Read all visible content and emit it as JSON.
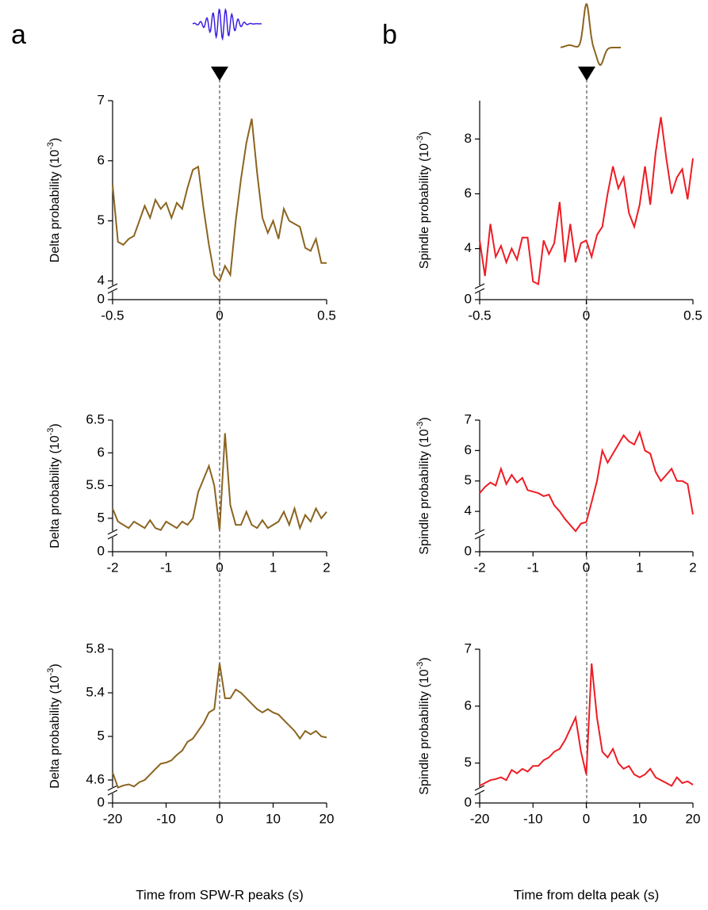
{
  "panel_labels": [
    "a",
    "b"
  ],
  "chart_data": [
    {
      "type": "line",
      "y_label": {
        "text": "Delta probability (10",
        "sup": "-3",
        "tail": ")"
      },
      "color": "#8b6420",
      "x": [
        -0.5,
        -0.475,
        -0.45,
        -0.425,
        -0.4,
        -0.375,
        -0.35,
        -0.325,
        -0.3,
        -0.275,
        -0.25,
        -0.225,
        -0.2,
        -0.175,
        -0.15,
        -0.125,
        -0.1,
        -0.075,
        -0.05,
        -0.025,
        0,
        0.025,
        0.05,
        0.075,
        0.1,
        0.125,
        0.15,
        0.175,
        0.2,
        0.225,
        0.25,
        0.275,
        0.3,
        0.325,
        0.35,
        0.375,
        0.4,
        0.425,
        0.45,
        0.475,
        0.5
      ],
      "values": [
        5.6,
        4.65,
        4.6,
        4.7,
        4.75,
        5.0,
        5.25,
        5.05,
        5.35,
        5.2,
        5.3,
        5.05,
        5.3,
        5.2,
        5.55,
        5.85,
        5.9,
        5.2,
        4.6,
        4.1,
        4.0,
        4.25,
        4.1,
        5.0,
        5.7,
        6.3,
        6.7,
        5.8,
        5.05,
        4.8,
        5.0,
        4.7,
        5.2,
        5.0,
        4.95,
        4.9,
        4.55,
        4.5,
        4.7,
        4.3,
        4.3
      ],
      "xlim": [
        -0.5,
        0.5
      ],
      "xticks": [
        -0.5,
        0,
        0.5
      ],
      "ylim": [
        3.9,
        7
      ],
      "yticks": [
        4,
        5,
        6,
        7
      ],
      "ybreak_tick": 0
    },
    {
      "type": "line",
      "y_label": {
        "text": "Delta probability (10",
        "sup": "-3",
        "tail": ")"
      },
      "color": "#8b6420",
      "x": [
        -2,
        -1.9,
        -1.8,
        -1.7,
        -1.6,
        -1.5,
        -1.4,
        -1.3,
        -1.2,
        -1.1,
        -1,
        -0.9,
        -0.8,
        -0.7,
        -0.6,
        -0.5,
        -0.4,
        -0.3,
        -0.2,
        -0.1,
        0,
        0.1,
        0.2,
        0.3,
        0.4,
        0.5,
        0.6,
        0.7,
        0.8,
        0.9,
        1,
        1.1,
        1.2,
        1.3,
        1.4,
        1.5,
        1.6,
        1.7,
        1.8,
        1.9,
        2
      ],
      "values": [
        5.15,
        4.95,
        4.9,
        4.85,
        4.95,
        4.9,
        4.85,
        4.97,
        4.85,
        4.82,
        4.95,
        4.9,
        4.85,
        4.95,
        4.9,
        5.0,
        5.4,
        5.6,
        5.8,
        5.5,
        4.82,
        6.3,
        5.2,
        4.9,
        4.9,
        5.1,
        4.9,
        4.85,
        4.97,
        4.85,
        4.9,
        4.95,
        5.1,
        4.9,
        5.15,
        4.85,
        5.05,
        4.95,
        5.15,
        5.0,
        5.1
      ],
      "xlim": [
        -2,
        2
      ],
      "xticks": [
        -2,
        -1,
        0,
        1,
        2
      ],
      "ylim": [
        4.78,
        6.5
      ],
      "yticks": [
        5,
        5.5,
        6,
        6.5
      ],
      "ybreak_tick": 0
    },
    {
      "type": "line",
      "y_label": {
        "text": "Delta probability (10",
        "sup": "-3",
        "tail": ")"
      },
      "color": "#8b6420",
      "x_label": "Time from SPW-R peaks (s)",
      "x": [
        -20,
        -19,
        -18,
        -17,
        -16,
        -15,
        -14,
        -13,
        -12,
        -11,
        -10,
        -9,
        -8,
        -7,
        -6,
        -5,
        -4,
        -3,
        -2,
        -1,
        0,
        1,
        2,
        3,
        4,
        5,
        6,
        7,
        8,
        9,
        10,
        11,
        12,
        13,
        14,
        15,
        16,
        17,
        18,
        19,
        20
      ],
      "values": [
        4.67,
        4.53,
        4.55,
        4.56,
        4.54,
        4.58,
        4.6,
        4.65,
        4.7,
        4.75,
        4.76,
        4.78,
        4.83,
        4.87,
        4.95,
        4.98,
        5.05,
        5.12,
        5.22,
        5.25,
        5.67,
        5.35,
        5.35,
        5.43,
        5.4,
        5.35,
        5.3,
        5.25,
        5.22,
        5.25,
        5.22,
        5.2,
        5.15,
        5.1,
        5.05,
        4.98,
        5.05,
        5.02,
        5.05,
        5.0,
        4.99
      ],
      "xlim": [
        -20,
        20
      ],
      "xticks": [
        -20,
        -10,
        0,
        10,
        20
      ],
      "ylim": [
        4.52,
        5.8
      ],
      "yticks": [
        4.6,
        5,
        5.4,
        5.8
      ],
      "ybreak_tick": 0
    },
    {
      "type": "line",
      "y_label": {
        "text": "Spindle probability (10",
        "sup": "-3",
        "tail": ")"
      },
      "color": "#ee1c24",
      "x": [
        -0.5,
        -0.475,
        -0.45,
        -0.425,
        -0.4,
        -0.375,
        -0.35,
        -0.325,
        -0.3,
        -0.275,
        -0.25,
        -0.225,
        -0.2,
        -0.175,
        -0.15,
        -0.125,
        -0.1,
        -0.075,
        -0.05,
        -0.025,
        0,
        0.025,
        0.05,
        0.075,
        0.1,
        0.125,
        0.15,
        0.175,
        0.2,
        0.225,
        0.25,
        0.275,
        0.3,
        0.325,
        0.35,
        0.375,
        0.4,
        0.425,
        0.45,
        0.475,
        0.5
      ],
      "values": [
        4.3,
        3.0,
        4.9,
        3.7,
        4.1,
        3.5,
        4.0,
        3.6,
        4.4,
        4.4,
        2.8,
        2.7,
        4.3,
        3.8,
        4.2,
        5.7,
        3.5,
        4.9,
        3.5,
        4.2,
        4.3,
        3.7,
        4.5,
        4.8,
        6.0,
        7.0,
        6.2,
        6.6,
        5.3,
        4.8,
        5.6,
        7.0,
        5.6,
        7.5,
        8.8,
        7.3,
        6.0,
        6.6,
        6.9,
        5.8,
        7.3
      ],
      "xlim": [
        -0.5,
        0.5
      ],
      "xticks": [
        -0.5,
        0,
        0.5
      ],
      "ylim": [
        2.6,
        9.4
      ],
      "yticks": [
        4,
        6,
        8
      ],
      "ybreak_tick": 0
    },
    {
      "type": "line",
      "y_label": {
        "text": "Spindle probability (10",
        "sup": "-3",
        "tail": ")"
      },
      "color": "#ee1c24",
      "x": [
        -2,
        -1.9,
        -1.8,
        -1.7,
        -1.6,
        -1.5,
        -1.4,
        -1.3,
        -1.2,
        -1.1,
        -1,
        -0.9,
        -0.8,
        -0.7,
        -0.6,
        -0.5,
        -0.4,
        -0.3,
        -0.2,
        -0.1,
        0,
        0.1,
        0.2,
        0.3,
        0.4,
        0.5,
        0.6,
        0.7,
        0.8,
        0.9,
        1,
        1.1,
        1.2,
        1.3,
        1.4,
        1.5,
        1.6,
        1.7,
        1.8,
        1.9,
        2
      ],
      "values": [
        4.6,
        4.8,
        4.95,
        4.85,
        5.4,
        4.9,
        5.2,
        4.95,
        5.1,
        4.7,
        4.65,
        4.6,
        4.5,
        4.55,
        4.2,
        4.0,
        3.75,
        3.55,
        3.35,
        3.6,
        3.65,
        4.3,
        5.0,
        6.0,
        5.6,
        5.9,
        6.2,
        6.5,
        6.3,
        6.2,
        6.6,
        6.0,
        5.9,
        5.3,
        5.0,
        5.2,
        5.4,
        5.0,
        5.0,
        4.9,
        3.9
      ],
      "xlim": [
        -2,
        2
      ],
      "xticks": [
        -2,
        -1,
        0,
        1,
        2
      ],
      "ylim": [
        3.3,
        7
      ],
      "yticks": [
        4,
        5,
        6,
        7
      ],
      "ybreak_tick": 0
    },
    {
      "type": "line",
      "y_label": {
        "text": "Spindle probability (10",
        "sup": "-3",
        "tail": ")"
      },
      "color": "#ee1c24",
      "x_label": "Time from delta peak (s)",
      "x": [
        -20,
        -19,
        -18,
        -17,
        -16,
        -15,
        -14,
        -13,
        -12,
        -11,
        -10,
        -9,
        -8,
        -7,
        -6,
        -5,
        -4,
        -3,
        -2,
        -1,
        0,
        1,
        2,
        3,
        4,
        5,
        6,
        7,
        8,
        9,
        10,
        11,
        12,
        13,
        14,
        15,
        16,
        17,
        18,
        19,
        20
      ],
      "values": [
        4.6,
        4.65,
        4.7,
        4.72,
        4.75,
        4.7,
        4.88,
        4.82,
        4.9,
        4.85,
        4.95,
        4.95,
        5.05,
        5.1,
        5.2,
        5.25,
        5.4,
        5.6,
        5.8,
        5.2,
        4.8,
        6.75,
        5.8,
        5.2,
        5.1,
        5.25,
        5.0,
        4.9,
        4.95,
        4.8,
        4.75,
        4.8,
        4.9,
        4.75,
        4.7,
        4.65,
        4.6,
        4.75,
        4.65,
        4.68,
        4.62
      ],
      "xlim": [
        -20,
        20
      ],
      "xticks": [
        -20,
        -10,
        0,
        10,
        20
      ],
      "ylim": [
        4.55,
        7
      ],
      "yticks": [
        5,
        6,
        7
      ],
      "ybreak_tick": 0
    }
  ]
}
